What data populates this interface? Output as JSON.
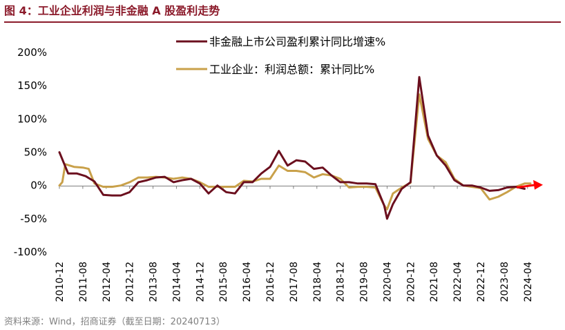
{
  "header": {
    "title": "图 4：工业企业利润与非金融 A 股盈利走势"
  },
  "footer": {
    "source": "资料来源：Wind，招商证券（截至日期：20240713）"
  },
  "chart_data": {
    "type": "line",
    "ylim": [
      -100,
      200
    ],
    "y_ticks": [
      200,
      150,
      100,
      50,
      0,
      -50,
      -100
    ],
    "y_tick_labels": [
      "200%",
      "150%",
      "100%",
      "50%",
      "0%",
      "-50%",
      "-100%"
    ],
    "x_range": [
      "2010-12",
      "2024-05"
    ],
    "x_tick_labels": [
      "2010-12",
      "2011-08",
      "2012-04",
      "2012-12",
      "2013-08",
      "2014-04",
      "2014-12",
      "2015-08",
      "2016-04",
      "2016-12",
      "2017-08",
      "2018-04",
      "2018-12",
      "2019-08",
      "2020-04",
      "2020-12",
      "2021-08",
      "2022-04",
      "2022-12",
      "2023-08",
      "2024-04"
    ],
    "legend_position": "top",
    "series": [
      {
        "name": "非金融上市公司盈利累计同比增速%",
        "color": "#6b0f1e",
        "points": [
          [
            "2010-12",
            50
          ],
          [
            "2011-03",
            18
          ],
          [
            "2011-06",
            18
          ],
          [
            "2011-09",
            14
          ],
          [
            "2011-12",
            6
          ],
          [
            "2012-03",
            -14
          ],
          [
            "2012-06",
            -15
          ],
          [
            "2012-09",
            -15
          ],
          [
            "2012-12",
            -10
          ],
          [
            "2013-03",
            5
          ],
          [
            "2013-06",
            8
          ],
          [
            "2013-09",
            12
          ],
          [
            "2013-12",
            13
          ],
          [
            "2014-03",
            5
          ],
          [
            "2014-06",
            8
          ],
          [
            "2014-09",
            10
          ],
          [
            "2014-12",
            3
          ],
          [
            "2015-03",
            -12
          ],
          [
            "2015-06",
            0
          ],
          [
            "2015-09",
            -10
          ],
          [
            "2015-12",
            -12
          ],
          [
            "2016-03",
            5
          ],
          [
            "2016-06",
            5
          ],
          [
            "2016-09",
            18
          ],
          [
            "2016-12",
            28
          ],
          [
            "2017-03",
            52
          ],
          [
            "2017-06",
            30
          ],
          [
            "2017-09",
            38
          ],
          [
            "2017-12",
            36
          ],
          [
            "2018-03",
            25
          ],
          [
            "2018-06",
            27
          ],
          [
            "2018-09",
            15
          ],
          [
            "2018-12",
            5
          ],
          [
            "2019-03",
            5
          ],
          [
            "2019-06",
            3
          ],
          [
            "2019-09",
            3
          ],
          [
            "2019-12",
            2
          ],
          [
            "2020-03",
            -30
          ],
          [
            "2020-04",
            -50
          ],
          [
            "2020-06",
            -28
          ],
          [
            "2020-09",
            -5
          ],
          [
            "2020-12",
            5
          ],
          [
            "2021-03",
            163
          ],
          [
            "2021-06",
            75
          ],
          [
            "2021-09",
            45
          ],
          [
            "2021-12",
            30
          ],
          [
            "2022-03",
            8
          ],
          [
            "2022-06",
            0
          ],
          [
            "2022-09",
            0
          ],
          [
            "2022-12",
            -3
          ],
          [
            "2023-03",
            -8
          ],
          [
            "2023-06",
            -7
          ],
          [
            "2023-09",
            -3
          ],
          [
            "2023-12",
            -2
          ],
          [
            "2024-03",
            -5
          ]
        ]
      },
      {
        "name": "工业企业：利润总额：累计同比%",
        "color": "#c9a14a",
        "points": [
          [
            "2010-12",
            0
          ],
          [
            "2011-01",
            5
          ],
          [
            "2011-02",
            32
          ],
          [
            "2011-05",
            28
          ],
          [
            "2011-08",
            27
          ],
          [
            "2011-10",
            25
          ],
          [
            "2011-12",
            3
          ],
          [
            "2012-03",
            -2
          ],
          [
            "2012-06",
            -2
          ],
          [
            "2012-09",
            0
          ],
          [
            "2012-12",
            5
          ],
          [
            "2013-03",
            12
          ],
          [
            "2013-06",
            12
          ],
          [
            "2013-09",
            13
          ],
          [
            "2013-12",
            12
          ],
          [
            "2014-03",
            10
          ],
          [
            "2014-06",
            12
          ],
          [
            "2014-09",
            10
          ],
          [
            "2014-12",
            5
          ],
          [
            "2015-03",
            -2
          ],
          [
            "2015-06",
            -2
          ],
          [
            "2015-09",
            -2
          ],
          [
            "2015-12",
            -2
          ],
          [
            "2016-03",
            7
          ],
          [
            "2016-06",
            6
          ],
          [
            "2016-09",
            10
          ],
          [
            "2016-12",
            10
          ],
          [
            "2017-03",
            30
          ],
          [
            "2017-06",
            22
          ],
          [
            "2017-09",
            22
          ],
          [
            "2017-12",
            20
          ],
          [
            "2018-03",
            12
          ],
          [
            "2018-06",
            17
          ],
          [
            "2018-09",
            15
          ],
          [
            "2018-12",
            10
          ],
          [
            "2019-03",
            -3
          ],
          [
            "2019-06",
            -2
          ],
          [
            "2019-09",
            -2
          ],
          [
            "2019-12",
            -3
          ],
          [
            "2020-03",
            -30
          ],
          [
            "2020-04",
            -36
          ],
          [
            "2020-06",
            -12
          ],
          [
            "2020-09",
            -3
          ],
          [
            "2020-12",
            4
          ],
          [
            "2021-03",
            137
          ],
          [
            "2021-06",
            70
          ],
          [
            "2021-09",
            45
          ],
          [
            "2021-12",
            35
          ],
          [
            "2022-03",
            10
          ],
          [
            "2022-06",
            0
          ],
          [
            "2022-09",
            -2
          ],
          [
            "2022-12",
            -4
          ],
          [
            "2023-03",
            -21
          ],
          [
            "2023-06",
            -17
          ],
          [
            "2023-09",
            -10
          ],
          [
            "2023-12",
            -2
          ],
          [
            "2024-03",
            3
          ],
          [
            "2024-05",
            3
          ]
        ]
      }
    ],
    "arrow_color": "#ff0000"
  }
}
